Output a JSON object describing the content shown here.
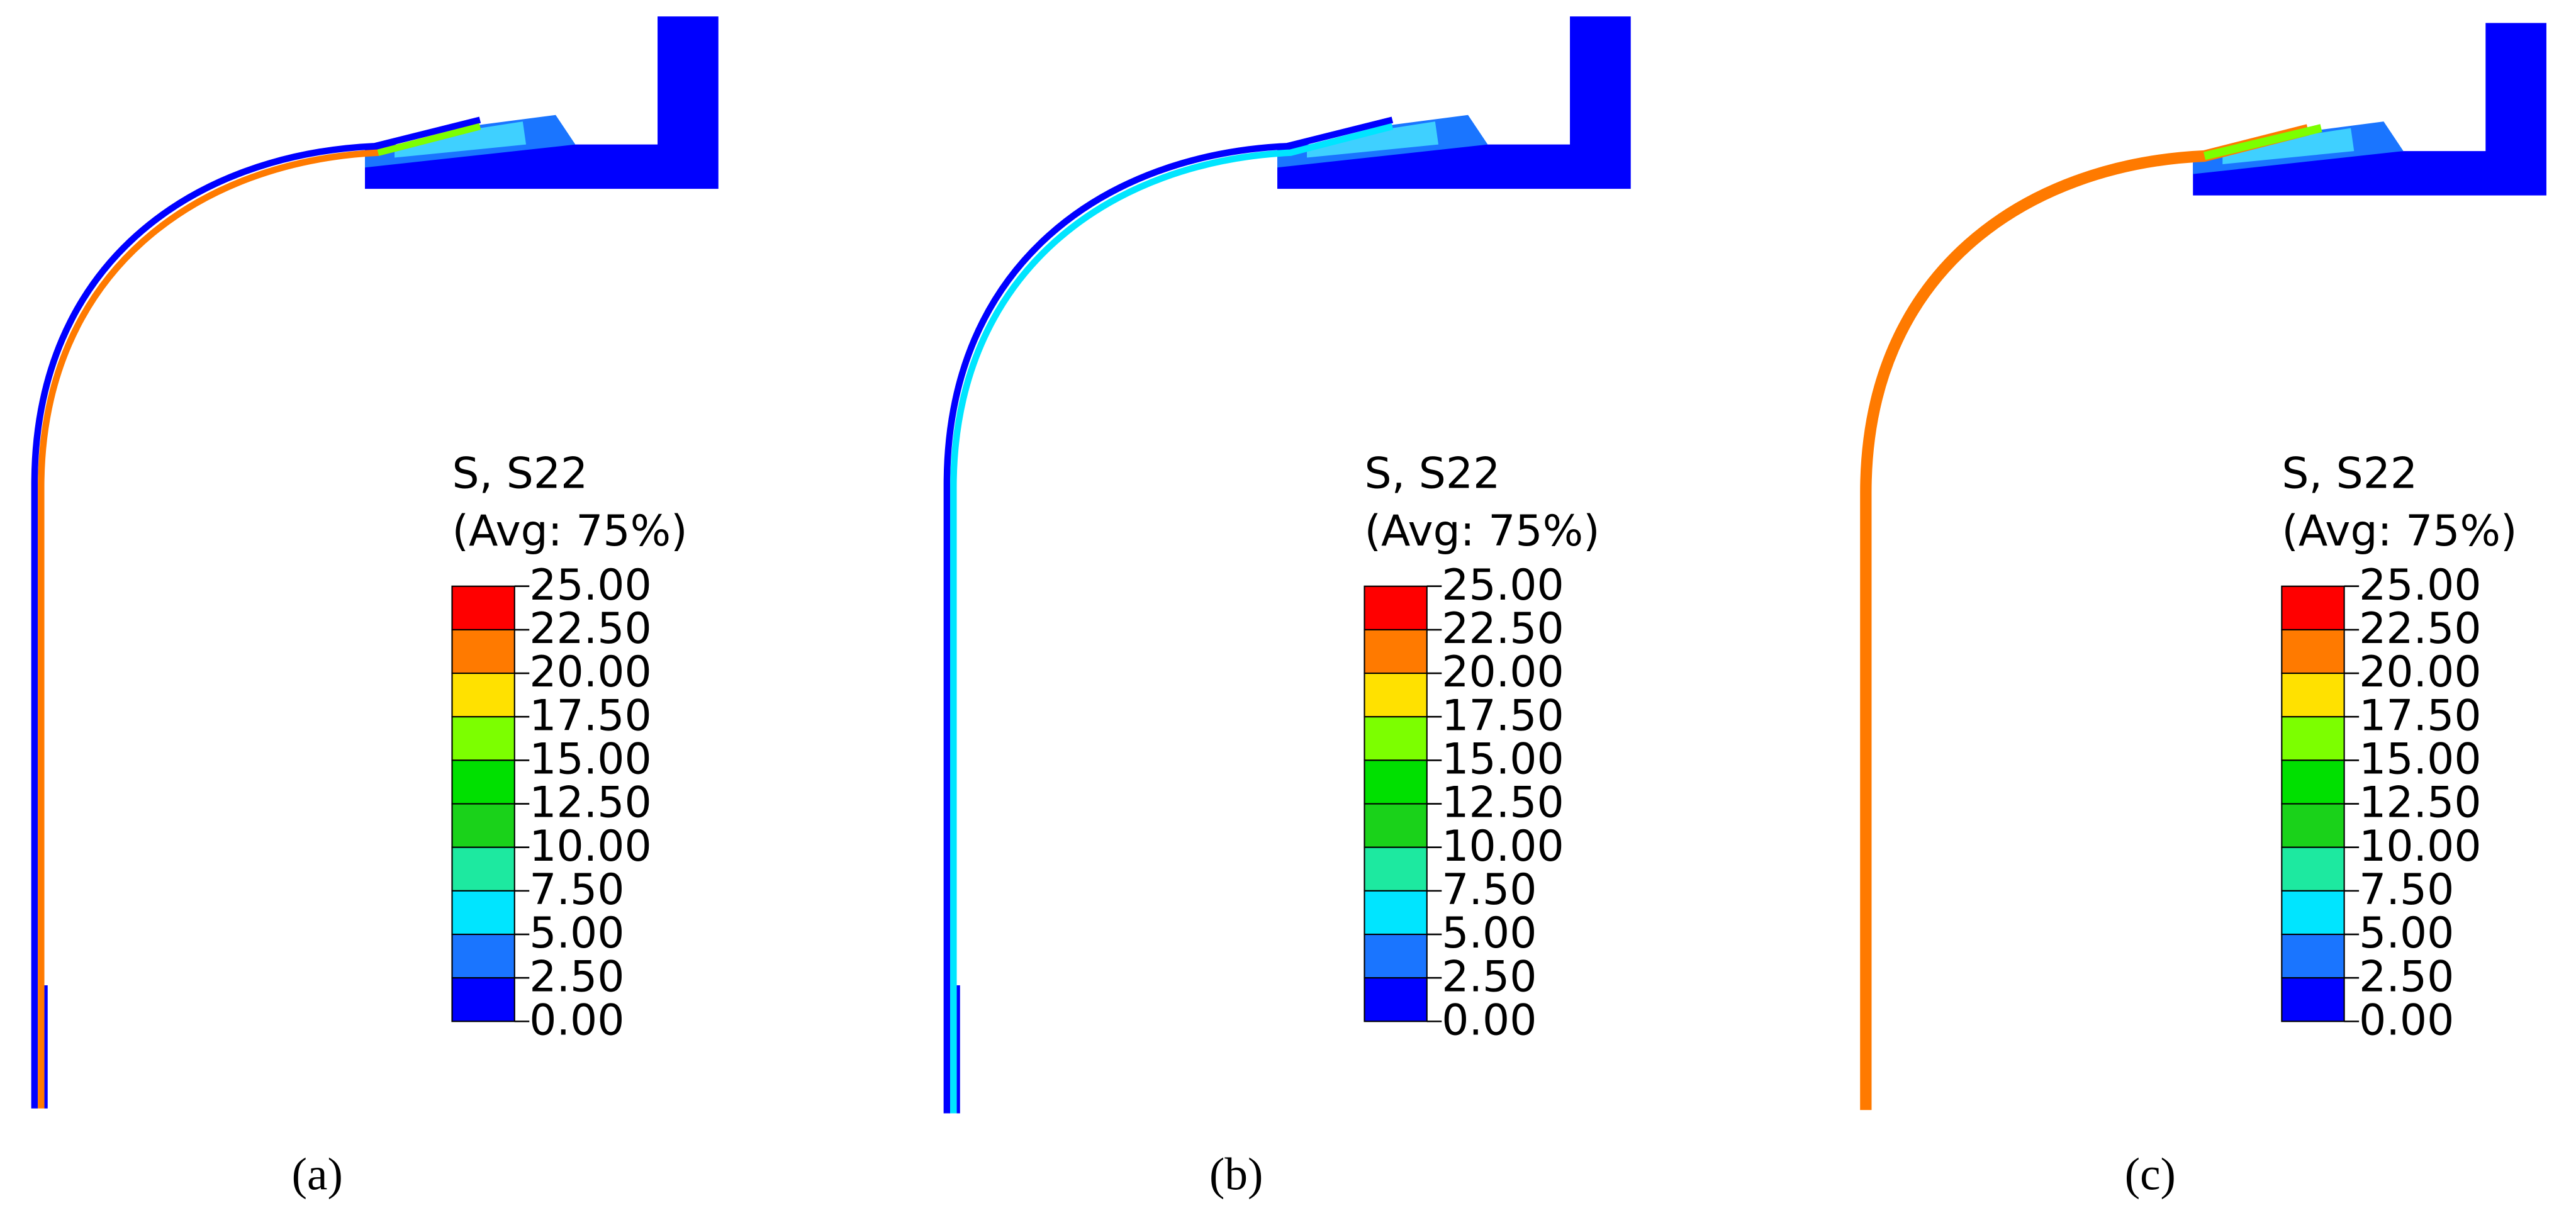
{
  "colormap": [
    "#ff0000",
    "#ff7a00",
    "#ffe100",
    "#7cff00",
    "#00e000",
    "#1ad21a",
    "#1de9a0",
    "#00e5ff",
    "#1a75ff",
    "#0000ff"
  ],
  "panels": [
    {
      "legend": {
        "title": "S, S22",
        "subtitle": "(Avg: 75%)",
        "ticks": [
          "25.00",
          "22.50",
          "20.00",
          "17.50",
          "15.00",
          "12.50",
          "10.00",
          "7.50",
          "5.00",
          "2.50",
          "0.00"
        ]
      },
      "caption": "(a)"
    },
    {
      "legend": {
        "title": "S, S22",
        "subtitle": "(Avg: 75%)",
        "ticks": [
          "25.00",
          "22.50",
          "20.00",
          "17.50",
          "15.00",
          "12.50",
          "10.00",
          "7.50",
          "5.00",
          "2.50",
          "0.00"
        ]
      },
      "caption": "(b)"
    },
    {
      "legend": {
        "title": "S, S22",
        "subtitle": "(Avg: 75%)",
        "ticks": [
          "25.00",
          "22.50",
          "20.00",
          "17.50",
          "15.00",
          "12.50",
          "10.00",
          "7.50",
          "5.00",
          "2.50",
          "0.00"
        ]
      },
      "caption": "(c)"
    }
  ]
}
